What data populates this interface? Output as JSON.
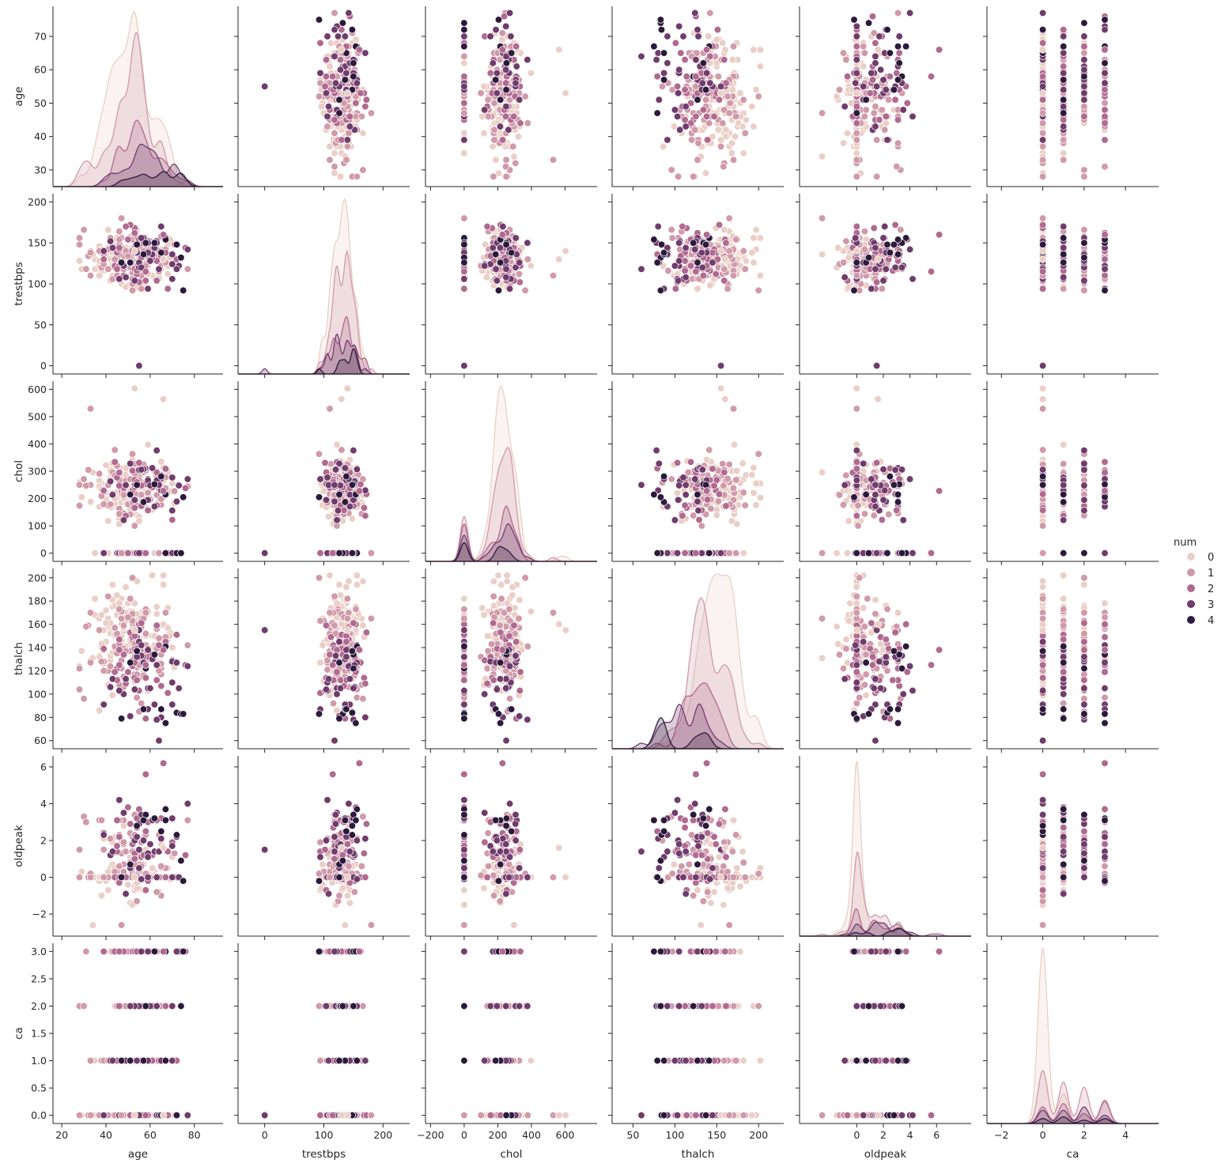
{
  "chart_data": {
    "type": "scatter",
    "title": "",
    "hue": {
      "title": "num",
      "levels": [
        "0",
        "1",
        "2",
        "3",
        "4"
      ],
      "colors": [
        "#eacfc7",
        "#d09aaa",
        "#b06a8f",
        "#6f3c6c",
        "#2c1a3c"
      ],
      "legend_position": "right-center"
    },
    "variables": [
      {
        "name": "age",
        "label": "age",
        "ticks": [
          20,
          40,
          60,
          80
        ],
        "range": [
          16,
          93
        ],
        "ticks_y": [
          30,
          40,
          50,
          60,
          70
        ],
        "range_y": [
          25,
          79
        ]
      },
      {
        "name": "trestbps",
        "label": "trestbps",
        "ticks": [
          0,
          100,
          200
        ],
        "range": [
          -45,
          245
        ],
        "ticks_y": [
          0,
          50,
          100,
          150,
          200
        ],
        "range_y": [
          -10,
          210
        ]
      },
      {
        "name": "chol",
        "label": "chol",
        "ticks": [
          -200,
          0,
          200,
          400,
          600
        ],
        "range": [
          -230,
          790
        ],
        "ticks_y": [
          0,
          100,
          200,
          300,
          400,
          500,
          600
        ],
        "range_y": [
          -30,
          630
        ]
      },
      {
        "name": "thalch",
        "label": "thalch",
        "ticks": [
          50,
          100,
          150,
          200
        ],
        "range": [
          25,
          230
        ],
        "ticks_y": [
          60,
          80,
          100,
          120,
          140,
          160,
          180,
          200
        ],
        "range_y": [
          53,
          208
        ]
      },
      {
        "name": "oldpeak",
        "label": "oldpeak",
        "ticks": [
          0,
          2,
          4,
          6
        ],
        "range": [
          -4.3,
          8.6
        ],
        "ticks_y": [
          -2,
          0,
          2,
          4,
          6
        ],
        "range_y": [
          -3.2,
          6.6
        ]
      },
      {
        "name": "ca",
        "label": "ca",
        "ticks": [
          -2,
          0,
          2,
          4
        ],
        "range": [
          -2.7,
          5.6
        ],
        "ticks_y": [
          0.0,
          0.5,
          1.0,
          1.5,
          2.0,
          2.5,
          3.0
        ],
        "range_y": [
          -0.15,
          3.15
        ]
      }
    ],
    "points_per_group": [
      130,
      90,
      40,
      30,
      12
    ],
    "diagonal": "kde-by-hue"
  }
}
